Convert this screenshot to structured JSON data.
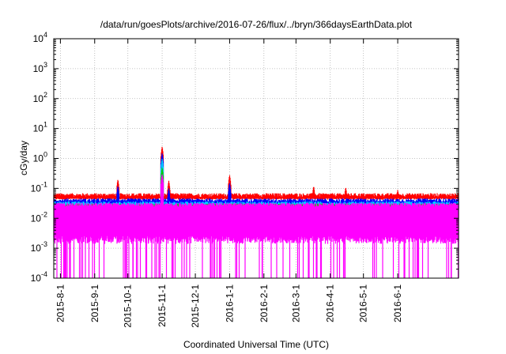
{
  "chart_data": {
    "type": "area",
    "title": "/data/run/goesPlots/archive/2016-07-26/flux/../bryn/366daysEarthData.plot",
    "xlabel": "Coordinated Universal Time (UTC)",
    "ylabel": "cGy/day",
    "y_scale": "log",
    "ylim": [
      0.0001,
      10000
    ],
    "xlim": [
      "2015-07-26",
      "2016-07-26"
    ],
    "grid": true,
    "legend": "none",
    "y_ticks": [
      {
        "value": 0.0001,
        "base": "10",
        "exp": "-4"
      },
      {
        "value": 0.001,
        "base": "10",
        "exp": "-3"
      },
      {
        "value": 0.01,
        "base": "10",
        "exp": "-2"
      },
      {
        "value": 0.1,
        "base": "10",
        "exp": "-1"
      },
      {
        "value": 1,
        "base": "10",
        "exp": "0"
      },
      {
        "value": 10,
        "base": "10",
        "exp": "1"
      },
      {
        "value": 100,
        "base": "10",
        "exp": "2"
      },
      {
        "value": 1000,
        "base": "10",
        "exp": "3"
      },
      {
        "value": 10000,
        "base": "10",
        "exp": "4"
      }
    ],
    "x_ticks": [
      "2015-8-1",
      "2015-9-1",
      "2015-10-1",
      "2015-11-1",
      "2015-12-1",
      "2016-1-1",
      "2016-2-1",
      "2016-3-1",
      "2016-4-1",
      "2016-5-1",
      "2016-6-1"
    ],
    "series": [
      {
        "color": "#ff0000",
        "baseline": 0.06,
        "spikes": [
          [
            "2015-09-22",
            0.2
          ],
          [
            "2015-11-01",
            2.5
          ],
          [
            "2015-11-07",
            0.18
          ],
          [
            "2016-01-01",
            0.28
          ],
          [
            "2016-03-17",
            0.12
          ],
          [
            "2016-04-15",
            0.11
          ],
          [
            "2016-06-01",
            0.09
          ]
        ]
      },
      {
        "color": "#0000ff",
        "baseline": 0.04,
        "spikes": [
          [
            "2015-09-22",
            0.12
          ],
          [
            "2015-11-01",
            1.5
          ],
          [
            "2015-11-07",
            0.1
          ],
          [
            "2016-01-01",
            0.15
          ]
        ]
      },
      {
        "color": "#00ccff",
        "baseline": 0.032,
        "spikes": [
          [
            "2015-11-01",
            1.0
          ]
        ]
      },
      {
        "color": "#00cc00",
        "baseline": 0.027,
        "spikes": [
          [
            "2015-11-01",
            0.5
          ]
        ]
      },
      {
        "color": "#ff00ff",
        "baseline": 0.02,
        "range": [
          0.002,
          0.03
        ],
        "dropout_min": 0.0001,
        "spikes": [
          [
            "2015-11-01",
            0.3
          ]
        ]
      }
    ]
  }
}
